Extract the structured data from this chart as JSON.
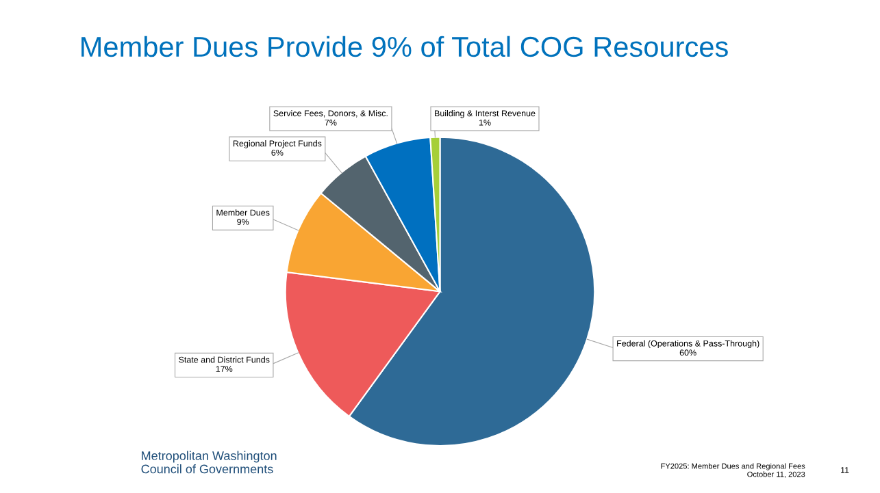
{
  "chart_data": {
    "type": "pie",
    "title": "Member Dues Provide 9% of Total COG Resources",
    "categories": [
      "Federal (Operations & Pass-Through)",
      "State and District Funds",
      "Member Dues",
      "Regional Project Funds",
      "Service Fees, Donors, & Misc.",
      "Building & Interst Revenue"
    ],
    "values": [
      60,
      17,
      9,
      6,
      7,
      1
    ],
    "colors": [
      "#2e6a96",
      "#ee5a5a",
      "#f9a533",
      "#53646e",
      "#0070c0",
      "#a6cf38"
    ],
    "value_labels": [
      "60%",
      "17%",
      "9%",
      "6%",
      "7%",
      "1%"
    ],
    "annotations": [
      "Metropolitan Washington\nCouncil of Governments",
      "FY2025: Member Dues and Regional Fees\nOctober 11, 2023",
      "11"
    ]
  }
}
